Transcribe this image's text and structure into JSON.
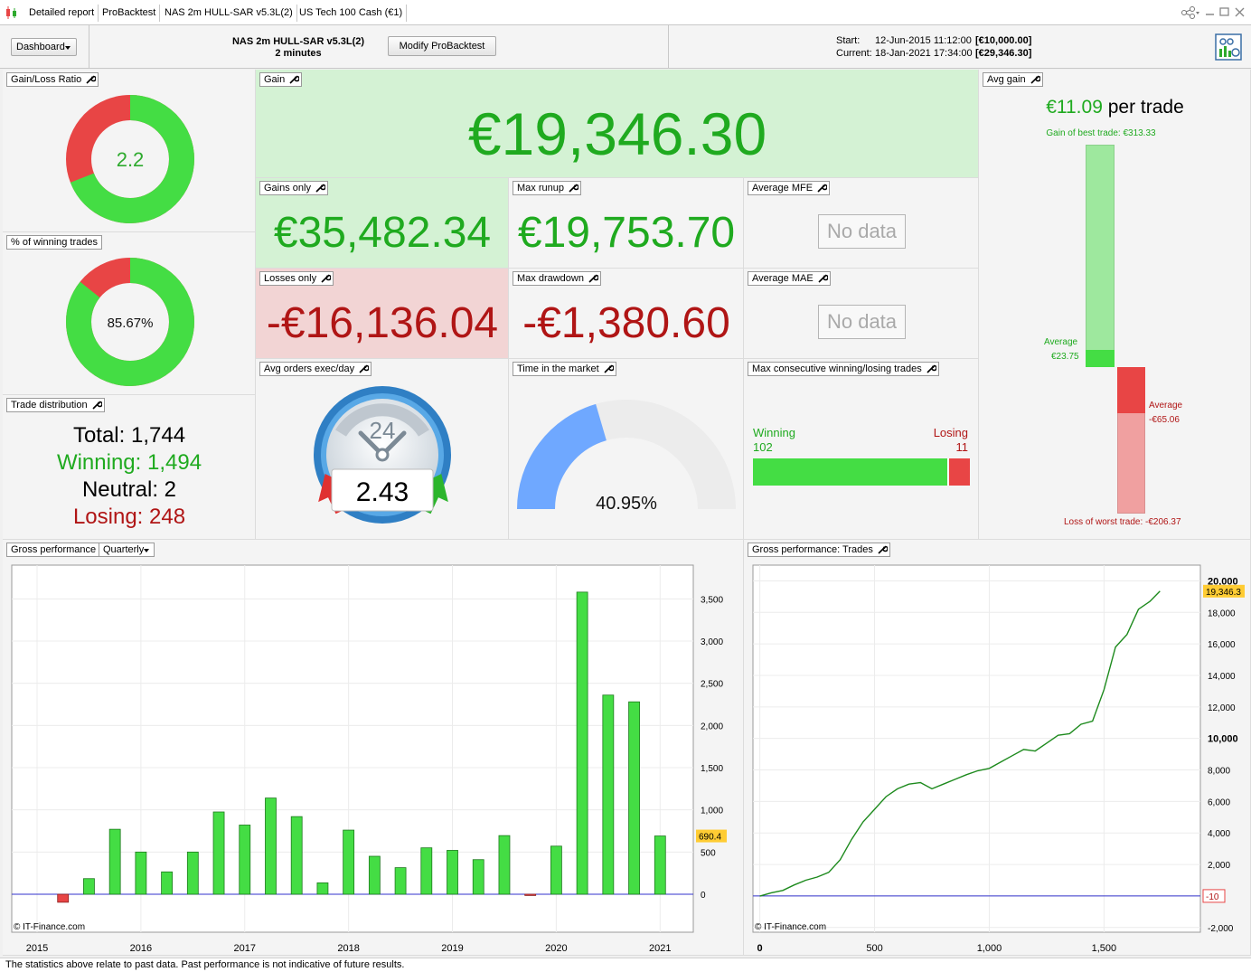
{
  "tabs": [
    "Detailed report",
    "ProBacktest",
    "NAS 2m HULL-SAR v5.3L(2)",
    "US Tech 100 Cash (€1)"
  ],
  "header": {
    "dashboard_label": "Dashboard",
    "strategy_name": "NAS 2m HULL-SAR v5.3L(2)",
    "timeframe": "2 minutes",
    "modify_label": "Modify ProBacktest",
    "start_label": "Start:",
    "start_date": "12-Jun-2015 11:12:00",
    "start_capital": "[€10,000.00]",
    "current_label": "Current:",
    "current_date": "18-Jan-2021 17:34:00",
    "current_capital": "[€29,346.30]"
  },
  "gain_loss_ratio": {
    "title": "Gain/Loss Ratio",
    "value": "2.2",
    "gain_share": 0.69
  },
  "winning_pct": {
    "title": "% of winning trades",
    "value": "85.67%",
    "fraction": 0.8567
  },
  "trade_distribution": {
    "title": "Trade distribution",
    "total_label": "Total:",
    "total": "1,744",
    "winning_label": "Winning:",
    "winning": "1,494",
    "neutral_label": "Neutral:",
    "neutral": "2",
    "losing_label": "Losing:",
    "losing": "248"
  },
  "gain": {
    "title": "Gain",
    "value": "€19,346.30"
  },
  "gains_only": {
    "title": "Gains only",
    "value": "€35,482.34"
  },
  "max_runup": {
    "title": "Max runup",
    "value": "€19,753.70"
  },
  "average_mfe": {
    "title": "Average MFE",
    "value": "No data"
  },
  "losses_only": {
    "title": "Losses only",
    "value": "-€16,136.04"
  },
  "max_drawdown": {
    "title": "Max drawdown",
    "value": "-€1,380.60"
  },
  "average_mae": {
    "title": "Average MAE",
    "value": "No data"
  },
  "avg_orders": {
    "title": "Avg orders exec/day",
    "value": "2.43",
    "dial_label": "24"
  },
  "time_in_market": {
    "title": "Time in the market",
    "value": "40.95%",
    "fraction": 0.4095
  },
  "max_consecutive": {
    "title": "Max consecutive winning/losing trades",
    "winning_label": "Winning",
    "winning": "102",
    "losing_label": "Losing",
    "losing": "11"
  },
  "avg_gain": {
    "title": "Avg gain",
    "per_trade_value": "€11.09",
    "per_trade_suffix": "per trade",
    "best_trade": "Gain of best trade: €313.33",
    "avg_gain_label": "Average",
    "avg_gain_value": "€23.75",
    "avg_loss_label": "Average",
    "avg_loss_value": "-€65.06",
    "worst_trade": "Loss of worst trade: -€206.37",
    "best": 313.33,
    "avg_win": 23.75,
    "avg_loss": -65.06,
    "worst": -206.37
  },
  "gross_quarterly": {
    "title": "Gross performance",
    "period_label": "Quarterly",
    "copyright": "© IT-Finance.com"
  },
  "gross_trades": {
    "title": "Gross performance: Trades",
    "copyright": "© IT-Finance.com"
  },
  "footer_text": "The statistics above relate to past data. Past performance is not indicative of future results.",
  "colors": {
    "green": "#44dd44",
    "red": "#e84545",
    "gain_bg": "#d4f2d4",
    "loss_bg": "#f2d4d4",
    "blue": "#6fa8ff"
  },
  "chart_data": [
    {
      "type": "bar",
      "title": "Gross performance",
      "x": [
        2015.25,
        2015.5,
        2015.75,
        2016.0,
        2016.25,
        2016.5,
        2016.75,
        2017.0,
        2017.25,
        2017.5,
        2017.75,
        2018.0,
        2018.25,
        2018.5,
        2018.75,
        2019.0,
        2019.25,
        2019.5,
        2019.75,
        2020.0,
        2020.25,
        2020.5,
        2020.75,
        2021.0
      ],
      "values": [
        -95,
        185,
        770,
        500,
        265,
        500,
        975,
        820,
        1140,
        920,
        135,
        760,
        450,
        315,
        550,
        520,
        410,
        695,
        -15,
        570,
        3580,
        2360,
        2280,
        690.4
      ],
      "x_ticks": [
        "2015",
        "2016",
        "2017",
        "2018",
        "2019",
        "2020",
        "2021"
      ],
      "y_ticks": [
        "0",
        "500",
        "1,000",
        "1,500",
        "2,000",
        "2,500",
        "3,000",
        "3,500"
      ],
      "ylim": [
        -450,
        3900
      ],
      "last_value_label": "690.4"
    },
    {
      "type": "line",
      "title": "Gross performance: Trades",
      "x": [
        0,
        50,
        100,
        150,
        200,
        250,
        300,
        350,
        400,
        450,
        500,
        550,
        600,
        650,
        700,
        750,
        800,
        850,
        900,
        950,
        1000,
        1050,
        1100,
        1150,
        1200,
        1250,
        1300,
        1350,
        1400,
        1450,
        1500,
        1550,
        1600,
        1650,
        1700,
        1744
      ],
      "values": [
        -10,
        200,
        350,
        700,
        1000,
        1200,
        1500,
        2300,
        3600,
        4700,
        5500,
        6300,
        6800,
        7100,
        7200,
        6800,
        7100,
        7400,
        7700,
        7950,
        8100,
        8500,
        8900,
        9300,
        9200,
        9700,
        10200,
        10300,
        10900,
        11100,
        13100,
        15800,
        16600,
        18200,
        18700,
        19346.3
      ],
      "x_ticks": [
        "0",
        "500",
        "1,000",
        "1,500"
      ],
      "y_ticks": [
        "-2,000",
        "0",
        "2,000",
        "4,000",
        "6,000",
        "8,000",
        "10,000",
        "12,000",
        "14,000",
        "16,000",
        "18,000",
        "20,000"
      ],
      "ylim": [
        -2300,
        21000
      ],
      "xlim": [
        -30,
        1920
      ],
      "last_value_label": "19,346.3",
      "zero_label": "-10"
    }
  ]
}
